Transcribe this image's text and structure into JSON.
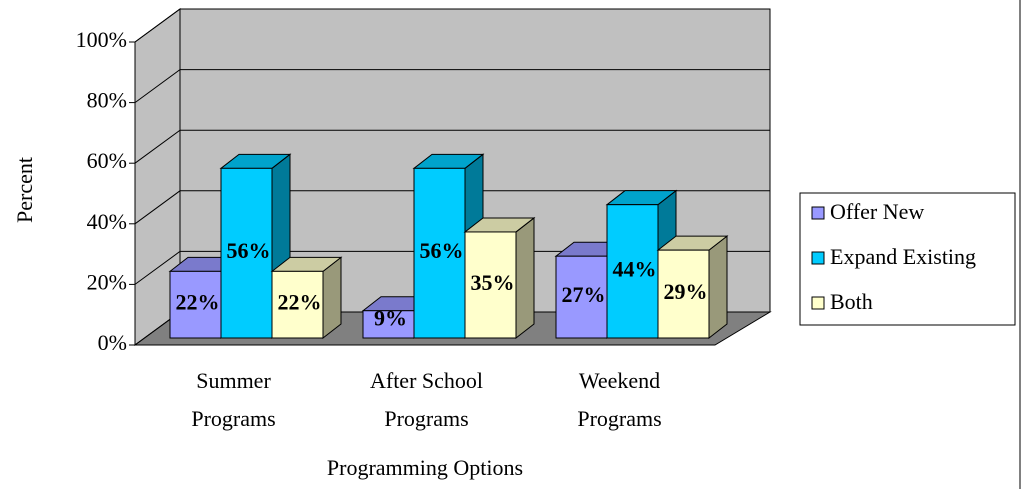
{
  "chart_data": {
    "type": "bar3d",
    "categories": [
      "Summer Programs",
      "After School Programs",
      "Weekend Programs"
    ],
    "series": [
      {
        "name": "Offer New",
        "color": "#9999ff",
        "values": [
          22,
          9,
          27
        ],
        "value_labels": [
          "22%",
          "9%",
          "27%"
        ]
      },
      {
        "name": "Expand Existing",
        "color": "#00ccff",
        "values": [
          56,
          56,
          44
        ],
        "value_labels": [
          "56%",
          "56%",
          "44%"
        ]
      },
      {
        "name": "Both",
        "color": "#ffffcc",
        "values": [
          22,
          35,
          29
        ],
        "value_labels": [
          "22%",
          "35%",
          "29%"
        ]
      }
    ],
    "ylim": [
      0,
      100
    ],
    "yticks": [
      {
        "value": 0,
        "label": "0%"
      },
      {
        "value": 20,
        "label": "20%"
      },
      {
        "value": 40,
        "label": "40%"
      },
      {
        "value": 60,
        "label": "60%"
      },
      {
        "value": 80,
        "label": "80%"
      },
      {
        "value": 100,
        "label": "100%"
      }
    ],
    "y_label": "Percent",
    "x_label": "Programming Options",
    "grid": true,
    "legend": "right"
  }
}
